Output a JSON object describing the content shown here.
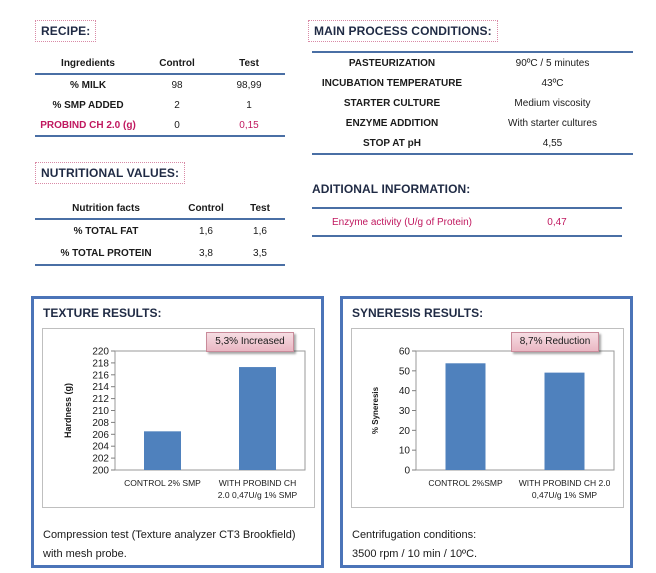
{
  "recipe": {
    "title": "RECIPE:",
    "headers": [
      "Ingredients",
      "Control",
      "Test"
    ],
    "rows": [
      {
        "name": "% MILK",
        "control": "98",
        "test": "98,99"
      },
      {
        "name": "% SMP ADDED",
        "control": "2",
        "test": "1"
      },
      {
        "name": "PROBIND CH 2.0 (g)",
        "control": "0",
        "test": "0,15"
      }
    ]
  },
  "process": {
    "title": "MAIN PROCESS CONDITIONS:",
    "rows": [
      {
        "label": "PASTEURIZATION",
        "value": "90ºC / 5 minutes"
      },
      {
        "label": "INCUBATION TEMPERATURE",
        "value": "43ºC"
      },
      {
        "label": "STARTER CULTURE",
        "value": "Medium viscosity"
      },
      {
        "label": "ENZYME ADDITION",
        "value": "With starter cultures"
      },
      {
        "label": "STOP AT pH",
        "value": "4,55"
      }
    ]
  },
  "nutrition": {
    "title": "NUTRITIONAL VALUES:",
    "headers": [
      "Nutrition facts",
      "Control",
      "Test"
    ],
    "rows": [
      {
        "name": "% TOTAL FAT",
        "control": "1,6",
        "test": "1,6"
      },
      {
        "name": "% TOTAL PROTEIN",
        "control": "3,8",
        "test": "3,5"
      }
    ]
  },
  "additional": {
    "title": "ADITIONAL INFORMATION:",
    "label": "Enzyme activity (U/g of Protein)",
    "value": "0,47"
  },
  "texture": {
    "title": "TEXTURE RESULTS:",
    "badge": "5,3% Increased",
    "caption_line1": "Compression test (Texture analyzer CT3 Brookfield)",
    "caption_line2": "with mesh probe."
  },
  "syneresis": {
    "title": "SYNERESIS RESULTS:",
    "badge": "8,7% Reduction",
    "caption_line1": "Centrifugation conditions:",
    "caption_line2": "3500 rpm / 10 min / 10ºC."
  },
  "colors": {
    "bar": "#4f81bd",
    "frame": "#4b74b8",
    "accent_pink": "#c0185f"
  },
  "chart_data": [
    {
      "type": "bar",
      "categories": [
        [
          "CONTROL 2% SMP"
        ],
        [
          "WITH PROBIND CH",
          "2.0 0,47U/g 1% SMP"
        ]
      ],
      "values": [
        206.5,
        217.3
      ],
      "ylabel": "Hardness (g)",
      "ylim": [
        200,
        220
      ],
      "yticks": [
        200,
        202,
        204,
        206,
        208,
        210,
        212,
        214,
        216,
        218,
        220
      ],
      "grid": false
    },
    {
      "type": "bar",
      "categories": [
        [
          "CONTROL 2%SMP"
        ],
        [
          "WITH PROBIND CH 2.0",
          "0,47U/g 1% SMP"
        ]
      ],
      "values": [
        53.8,
        49.1
      ],
      "ylabel": "% Syneresis",
      "ylim": [
        0,
        60
      ],
      "yticks": [
        0,
        10,
        20,
        30,
        40,
        50,
        60
      ],
      "grid": false
    }
  ]
}
